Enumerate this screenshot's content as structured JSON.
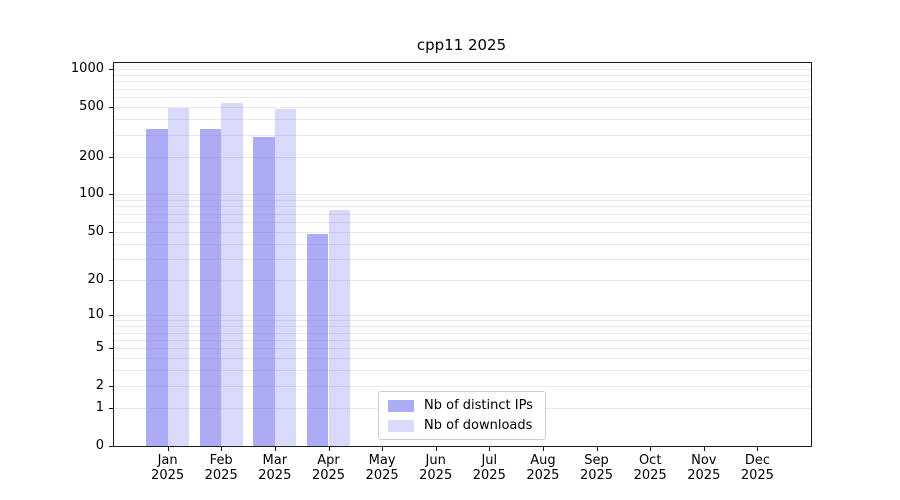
{
  "chart_data": {
    "type": "bar",
    "title": "cpp11 2025",
    "yscale": "log1p",
    "ylim": [
      0,
      1120
    ],
    "grid": "on",
    "legend_position": "lower center inside plot",
    "y_ticks": [
      0,
      1,
      2,
      5,
      10,
      20,
      50,
      100,
      200,
      500,
      1000
    ],
    "gridline_values": [
      1,
      2,
      3,
      4,
      5,
      6,
      7,
      8,
      9,
      10,
      20,
      30,
      40,
      50,
      60,
      70,
      80,
      90,
      100,
      200,
      300,
      400,
      500,
      600,
      700,
      800,
      900,
      1000
    ],
    "categories": [
      {
        "month": "Jan",
        "year": "2025"
      },
      {
        "month": "Feb",
        "year": "2025"
      },
      {
        "month": "Mar",
        "year": "2025"
      },
      {
        "month": "Apr",
        "year": "2025"
      },
      {
        "month": "May",
        "year": "2025"
      },
      {
        "month": "Jun",
        "year": "2025"
      },
      {
        "month": "Jul",
        "year": "2025"
      },
      {
        "month": "Aug",
        "year": "2025"
      },
      {
        "month": "Sep",
        "year": "2025"
      },
      {
        "month": "Oct",
        "year": "2025"
      },
      {
        "month": "Nov",
        "year": "2025"
      },
      {
        "month": "Dec",
        "year": "2025"
      }
    ],
    "series": [
      {
        "name": "Nb of distinct IPs",
        "color": "rgba(120,120,240,0.62)",
        "values": [
          335,
          335,
          290,
          48,
          null,
          null,
          null,
          null,
          null,
          null,
          null,
          null
        ]
      },
      {
        "name": "Nb of downloads",
        "color": "rgba(120,120,240,0.28)",
        "values": [
          495,
          540,
          480,
          75,
          null,
          null,
          null,
          null,
          null,
          null,
          null,
          null
        ]
      }
    ],
    "colors": {
      "grid": "#e8e8e8",
      "axis": "#1a1a1a",
      "background": "#ffffff"
    }
  }
}
